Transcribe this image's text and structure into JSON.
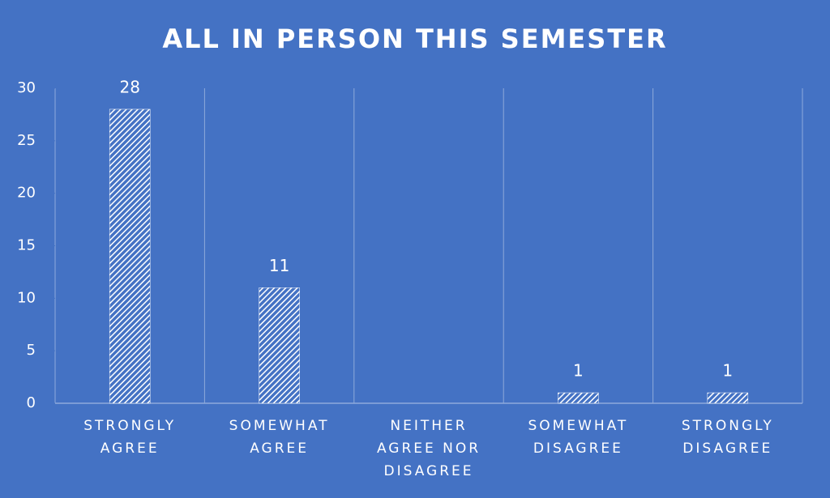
{
  "chart_data": {
    "type": "bar",
    "title": "ALL IN PERSON THIS SEMESTER",
    "categories": [
      "STRONGLY AGREE",
      "SOMEWHAT AGREE",
      "NEITHER AGREE NOR DISAGREE",
      "SOMEWHAT DISAGREE",
      "STRONGLY DISAGREE"
    ],
    "values": [
      28,
      11,
      0,
      1,
      1
    ],
    "value_labels": [
      "28",
      "11",
      null,
      "1",
      "1"
    ],
    "color": "#ffffff",
    "ylim": [
      0,
      30
    ],
    "yticks": [
      0,
      5,
      10,
      15,
      20,
      25,
      30
    ]
  }
}
